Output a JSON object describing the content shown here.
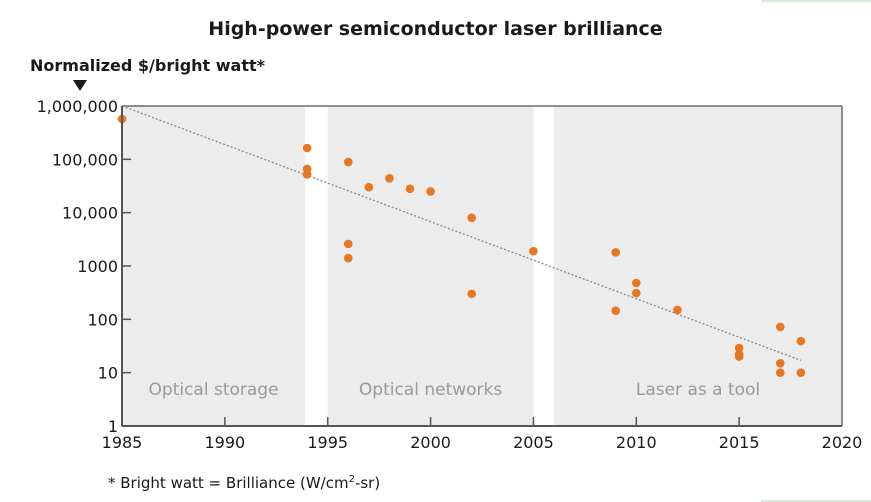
{
  "chart_data": {
    "type": "scatter",
    "title": "High-power semiconductor laser brilliance",
    "ylabel": "Normalized $/bright watt*",
    "xlabel": "",
    "yscale": "log",
    "xlim": [
      1985,
      2020
    ],
    "ylim": [
      1,
      1000000
    ],
    "x_ticks": [
      1985,
      1990,
      1995,
      2000,
      2005,
      2010,
      2015,
      2020
    ],
    "x_tick_labels": [
      "1985",
      "1990",
      "1995",
      "2000",
      "2005",
      "2010",
      "2015",
      "2020"
    ],
    "y_ticks": [
      1,
      10,
      100,
      1000,
      10000,
      100000,
      1000000
    ],
    "y_tick_labels": [
      "1",
      "10",
      "100",
      "1000",
      "10,000",
      "100,000",
      "1,000,000"
    ],
    "grid": false,
    "regions": [
      {
        "label": "Optical storage",
        "x_start": 1985,
        "x_end": 1993.9
      },
      {
        "label": "Optical networks",
        "x_start": 1995,
        "x_end": 2005
      },
      {
        "label": "Laser as a tool",
        "x_start": 2006,
        "x_end": 2020
      }
    ],
    "series": [
      {
        "name": "Data points",
        "color": "#e87722",
        "points": [
          {
            "x": 1985,
            "y": 570000
          },
          {
            "x": 1994,
            "y": 163000
          },
          {
            "x": 1994,
            "y": 66000
          },
          {
            "x": 1994,
            "y": 52000
          },
          {
            "x": 1996,
            "y": 89000
          },
          {
            "x": 1996,
            "y": 2600
          },
          {
            "x": 1996,
            "y": 1400
          },
          {
            "x": 1997,
            "y": 30000
          },
          {
            "x": 1998,
            "y": 44000
          },
          {
            "x": 1999,
            "y": 28000
          },
          {
            "x": 2000,
            "y": 25000
          },
          {
            "x": 2002,
            "y": 8000
          },
          {
            "x": 2002,
            "y": 300
          },
          {
            "x": 2005,
            "y": 1900
          },
          {
            "x": 2009,
            "y": 1800
          },
          {
            "x": 2009,
            "y": 145
          },
          {
            "x": 2010,
            "y": 480
          },
          {
            "x": 2010,
            "y": 310
          },
          {
            "x": 2012,
            "y": 150
          },
          {
            "x": 2015,
            "y": 29
          },
          {
            "x": 2015,
            "y": 22
          },
          {
            "x": 2015,
            "y": 20
          },
          {
            "x": 2017,
            "y": 72
          },
          {
            "x": 2017,
            "y": 15
          },
          {
            "x": 2017,
            "y": 10
          },
          {
            "x": 2018,
            "y": 39
          },
          {
            "x": 2018,
            "y": 10
          }
        ]
      }
    ],
    "trendline": {
      "style": "dotted",
      "color": "#888888",
      "from": {
        "x": 1985,
        "y": 1000000
      },
      "to": {
        "x": 2018,
        "y": 17
      }
    },
    "footnote": {
      "prefix": "* Bright watt = Brilliance (W/cm",
      "sup": "2",
      "suffix": "-sr)"
    }
  }
}
